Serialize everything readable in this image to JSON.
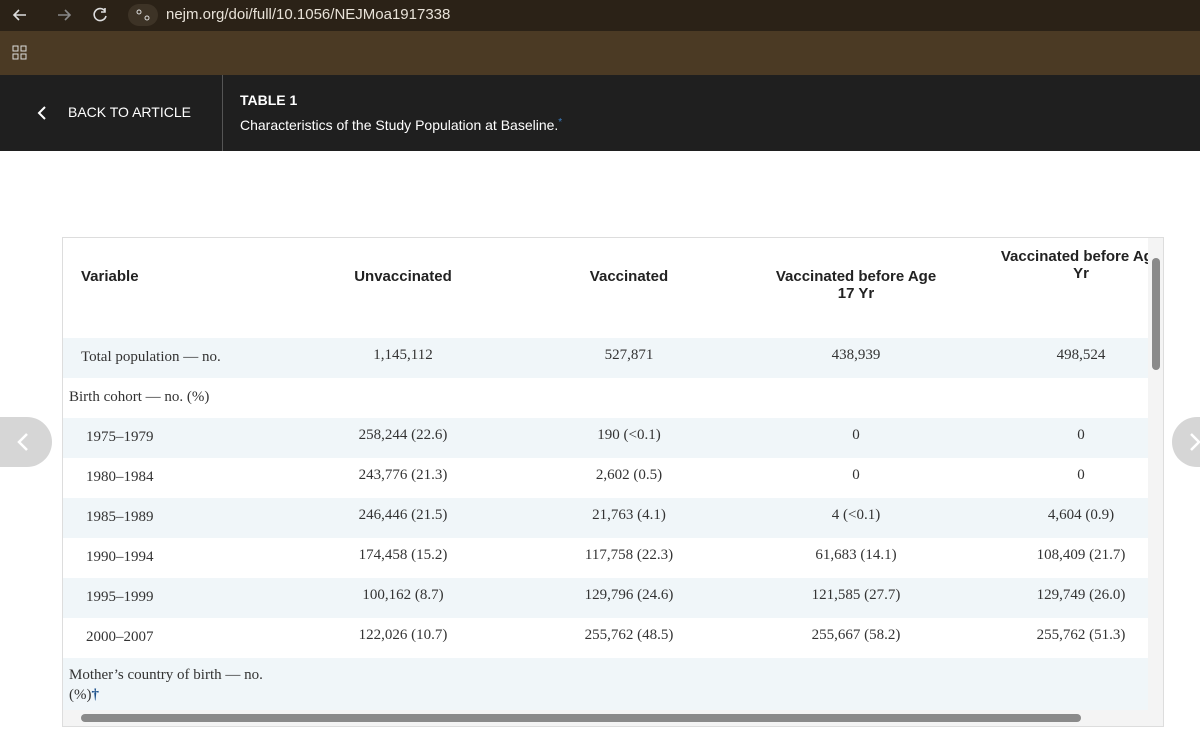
{
  "browser": {
    "url": "nejm.org/doi/full/10.1056/NEJMoa1917338"
  },
  "header": {
    "back": "BACK TO ARTICLE",
    "table_label": "TABLE 1",
    "caption": "Characteristics of the Study Population at Baseline.",
    "caption_mark": "*"
  },
  "table": {
    "columns": [
      "Variable",
      "Unvaccinated",
      "Vaccinated",
      "Vaccinated before Age 17 Yr",
      "Vaccinated before Age Yr"
    ],
    "rows": [
      {
        "label": "Total population — no.",
        "cells": [
          "1,145,112",
          "527,871",
          "438,939",
          "498,524"
        ]
      },
      {
        "label": "Birth cohort — no. (%)",
        "section": true
      },
      {
        "label": "1975–1979",
        "cells": [
          "258,244 (22.6)",
          "190 (<0.1)",
          "0",
          "0"
        ]
      },
      {
        "label": "1980–1984",
        "cells": [
          "243,776 (21.3)",
          "2,602 (0.5)",
          "0",
          "0"
        ]
      },
      {
        "label": "1985–1989",
        "cells": [
          "246,446 (21.5)",
          "21,763 (4.1)",
          "4 (<0.1)",
          "4,604 (0.9)"
        ]
      },
      {
        "label": "1990–1994",
        "cells": [
          "174,458 (15.2)",
          "117,758 (22.3)",
          "61,683 (14.1)",
          "108,409 (21.7)"
        ]
      },
      {
        "label": "1995–1999",
        "cells": [
          "100,162 (8.7)",
          "129,796 (24.6)",
          "121,585 (27.7)",
          "129,749 (26.0)"
        ]
      },
      {
        "label": "2000–2007",
        "cells": [
          "122,026 (10.7)",
          "255,762 (48.5)",
          "255,667 (58.2)",
          "255,762 (51.3)"
        ]
      },
      {
        "label": "Mother’s country of birth — no. (%)",
        "section": true,
        "mark": "†"
      }
    ]
  }
}
